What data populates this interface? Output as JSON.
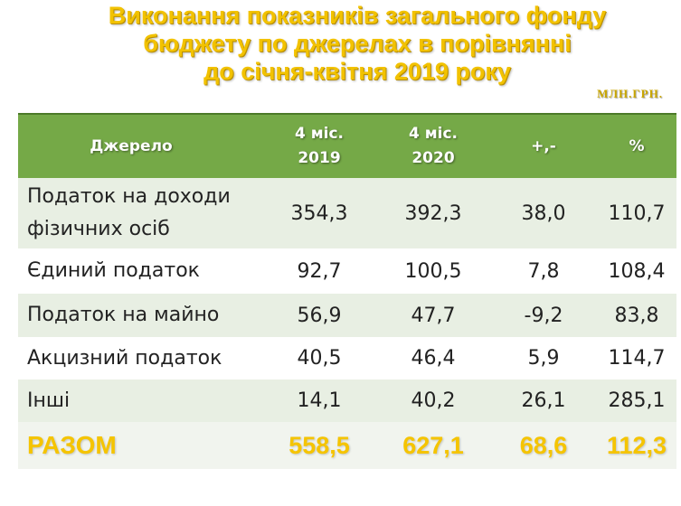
{
  "title": {
    "line1": "Виконання показників загального фонду",
    "line2": "бюджету по джерелах в порівнянні",
    "line3": "до січня-квітня 2019 року"
  },
  "units": "МЛН.ГРН.",
  "table": {
    "headers": {
      "source": "Джерело",
      "col2019_line1": "4 міс.",
      "col2019_line2": "2019",
      "col2020_line1": "4 міс.",
      "col2020_line2": "2020",
      "diff": "+,-",
      "percent": "%"
    },
    "rows": [
      {
        "source_line1": "Податок на доходи",
        "source_line2": "фізичних осіб",
        "v2019": "354,3",
        "v2020": "392,3",
        "diff": "38,0",
        "percent": "110,7"
      },
      {
        "source_line1": "Єдиний податок",
        "source_line2": "",
        "v2019": "92,7",
        "v2020": "100,5",
        "diff": "7,8",
        "percent": "108,4"
      },
      {
        "source_line1": "Податок на майно",
        "source_line2": "",
        "v2019": "56,9",
        "v2020": "47,7",
        "diff": "-9,2",
        "percent": "83,8"
      },
      {
        "source_line1": "Акцизний податок",
        "source_line2": "",
        "v2019": "40,5",
        "v2020": "46,4",
        "diff": "5,9",
        "percent": "114,7"
      },
      {
        "source_line1": "Інші",
        "source_line2": "",
        "v2019": "14,1",
        "v2020": "40,2",
        "diff": "26,1",
        "percent": "285,1"
      }
    ],
    "total": {
      "source": "РАЗОМ",
      "v2019": "558,5",
      "v2020": "627,1",
      "diff": "68,6",
      "percent": "112,3"
    }
  },
  "colors": {
    "title": "#f2c200",
    "header_bg": "#75a947",
    "row_alt_bg": "#e8efe3",
    "total_text": "#f5c400"
  }
}
